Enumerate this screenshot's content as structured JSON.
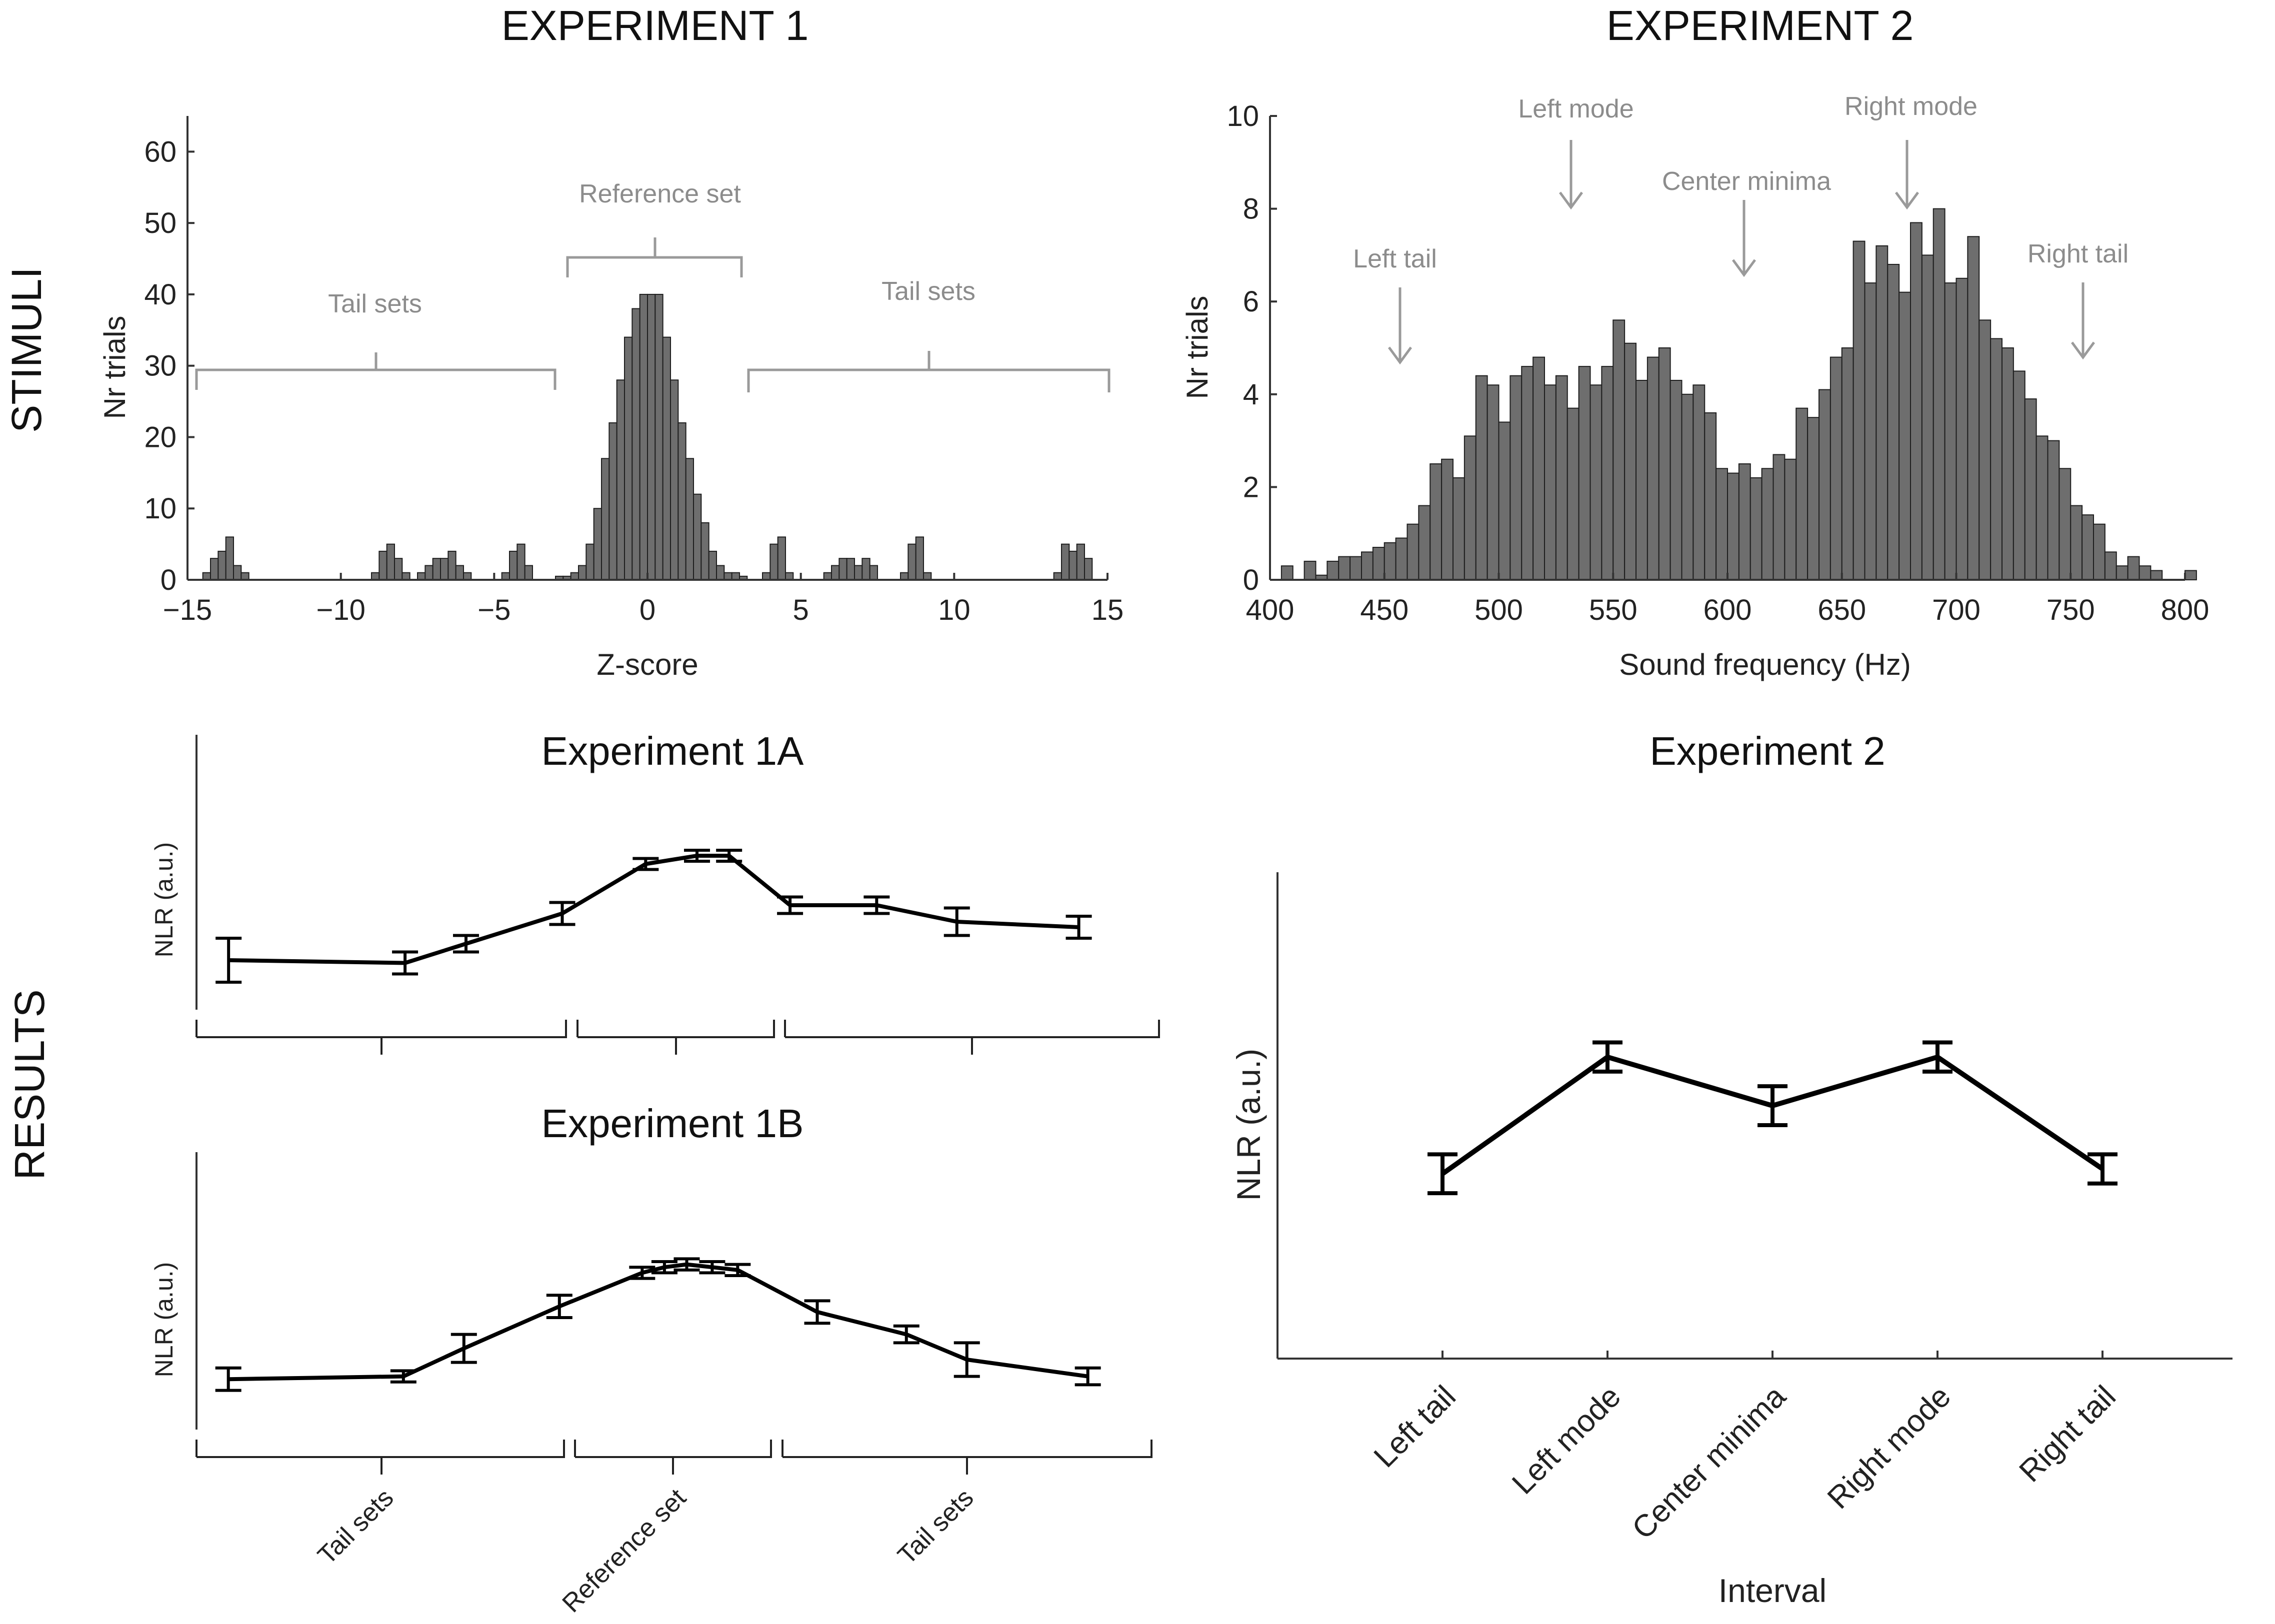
{
  "headings": {
    "col1": "EXPERIMENT 1",
    "col2": "EXPERIMENT 2",
    "row1": "STIMULI",
    "row2": "RESULTS"
  },
  "chart_data": [
    {
      "id": "exp1_stimuli",
      "type": "bar",
      "xlabel": "Z-score",
      "ylabel": "Nr trials",
      "xlim": [
        -15,
        15
      ],
      "ylim": [
        0,
        65
      ],
      "xticks": [
        -15,
        -10,
        -5,
        0,
        5,
        10,
        15
      ],
      "yticks": [
        0,
        10,
        20,
        30,
        40,
        50,
        60
      ],
      "bin_width": 0.25,
      "bins": [
        [
          -14.5,
          1
        ],
        [
          -14.25,
          3
        ],
        [
          -14.0,
          4
        ],
        [
          -13.75,
          6
        ],
        [
          -13.5,
          2
        ],
        [
          -13.25,
          1
        ],
        [
          -9.0,
          1
        ],
        [
          -8.75,
          4
        ],
        [
          -8.5,
          5
        ],
        [
          -8.25,
          3
        ],
        [
          -8.0,
          1
        ],
        [
          -7.5,
          1
        ],
        [
          -7.25,
          2
        ],
        [
          -7.0,
          3
        ],
        [
          -6.75,
          3
        ],
        [
          -6.5,
          4
        ],
        [
          -6.25,
          2
        ],
        [
          -6.0,
          1
        ],
        [
          -4.75,
          1
        ],
        [
          -4.5,
          4
        ],
        [
          -4.25,
          5
        ],
        [
          -4.0,
          2
        ],
        [
          -3.0,
          0.5
        ],
        [
          -2.75,
          0.5
        ],
        [
          -2.5,
          1
        ],
        [
          -2.25,
          2
        ],
        [
          -2.0,
          5
        ],
        [
          -1.75,
          10
        ],
        [
          -1.5,
          17
        ],
        [
          -1.25,
          22
        ],
        [
          -1.0,
          28
        ],
        [
          -0.75,
          34
        ],
        [
          -0.5,
          38
        ],
        [
          -0.25,
          40
        ],
        [
          0.0,
          40
        ],
        [
          0.25,
          40
        ],
        [
          0.5,
          34
        ],
        [
          0.75,
          28
        ],
        [
          1.0,
          22
        ],
        [
          1.25,
          17
        ],
        [
          1.5,
          12
        ],
        [
          1.75,
          8
        ],
        [
          2.0,
          4
        ],
        [
          2.25,
          2
        ],
        [
          2.5,
          1
        ],
        [
          2.75,
          1
        ],
        [
          3.0,
          0.5
        ],
        [
          3.75,
          1
        ],
        [
          4.0,
          5
        ],
        [
          4.25,
          6
        ],
        [
          4.5,
          1
        ],
        [
          5.75,
          1
        ],
        [
          6.0,
          2
        ],
        [
          6.25,
          3
        ],
        [
          6.5,
          3
        ],
        [
          6.75,
          2
        ],
        [
          7.0,
          3
        ],
        [
          7.25,
          2
        ],
        [
          8.25,
          1
        ],
        [
          8.5,
          5
        ],
        [
          8.75,
          6
        ],
        [
          9.0,
          1
        ],
        [
          13.25,
          1
        ],
        [
          13.5,
          5
        ],
        [
          13.75,
          4
        ],
        [
          14.0,
          5
        ],
        [
          14.25,
          3
        ]
      ],
      "annotations": [
        "Tail sets",
        "Reference set",
        "Tail sets"
      ]
    },
    {
      "id": "exp2_stimuli",
      "type": "bar",
      "xlabel": "Sound frequency (Hz)",
      "ylabel": "Nr trials",
      "xlim": [
        400,
        800
      ],
      "ylim": [
        0,
        10
      ],
      "xticks": [
        400,
        450,
        500,
        550,
        600,
        650,
        700,
        750,
        800
      ],
      "yticks": [
        0,
        2,
        4,
        6,
        8,
        10
      ],
      "bin_width": 5,
      "bins": [
        [
          405,
          0.3
        ],
        [
          410,
          0
        ],
        [
          415,
          0.4
        ],
        [
          420,
          0.1
        ],
        [
          425,
          0.4
        ],
        [
          430,
          0.5
        ],
        [
          435,
          0.5
        ],
        [
          440,
          0.6
        ],
        [
          445,
          0.7
        ],
        [
          450,
          0.8
        ],
        [
          455,
          0.9
        ],
        [
          460,
          1.2
        ],
        [
          465,
          1.6
        ],
        [
          470,
          2.5
        ],
        [
          475,
          2.6
        ],
        [
          480,
          2.2
        ],
        [
          485,
          3.1
        ],
        [
          490,
          4.4
        ],
        [
          495,
          4.2
        ],
        [
          500,
          3.4
        ],
        [
          505,
          4.4
        ],
        [
          510,
          4.6
        ],
        [
          515,
          4.8
        ],
        [
          520,
          4.2
        ],
        [
          525,
          4.4
        ],
        [
          530,
          3.7
        ],
        [
          535,
          4.6
        ],
        [
          540,
          4.2
        ],
        [
          545,
          4.6
        ],
        [
          550,
          5.6
        ],
        [
          555,
          5.1
        ],
        [
          560,
          4.3
        ],
        [
          565,
          4.8
        ],
        [
          570,
          5.0
        ],
        [
          575,
          4.3
        ],
        [
          580,
          4.0
        ],
        [
          585,
          4.2
        ],
        [
          590,
          3.6
        ],
        [
          595,
          2.4
        ],
        [
          600,
          2.3
        ],
        [
          605,
          2.5
        ],
        [
          610,
          2.2
        ],
        [
          615,
          2.4
        ],
        [
          620,
          2.7
        ],
        [
          625,
          2.6
        ],
        [
          630,
          3.7
        ],
        [
          635,
          3.5
        ],
        [
          640,
          4.1
        ],
        [
          645,
          4.8
        ],
        [
          650,
          5.0
        ],
        [
          655,
          7.3
        ],
        [
          660,
          6.4
        ],
        [
          665,
          7.2
        ],
        [
          670,
          6.8
        ],
        [
          675,
          6.2
        ],
        [
          680,
          7.7
        ],
        [
          685,
          7.0
        ],
        [
          690,
          8.0
        ],
        [
          695,
          6.4
        ],
        [
          700,
          6.5
        ],
        [
          705,
          7.4
        ],
        [
          710,
          5.6
        ],
        [
          715,
          5.2
        ],
        [
          720,
          5.0
        ],
        [
          725,
          4.5
        ],
        [
          730,
          3.9
        ],
        [
          735,
          3.1
        ],
        [
          740,
          3.0
        ],
        [
          745,
          2.4
        ],
        [
          750,
          1.6
        ],
        [
          755,
          1.4
        ],
        [
          760,
          1.2
        ],
        [
          765,
          0.6
        ],
        [
          770,
          0.3
        ],
        [
          775,
          0.5
        ],
        [
          780,
          0.3
        ],
        [
          785,
          0.2
        ],
        [
          790,
          0
        ],
        [
          795,
          0
        ],
        [
          800,
          0.2
        ]
      ],
      "annotations": [
        "Left tail",
        "Left mode",
        "Center minima",
        "Right mode",
        "Right tail"
      ]
    },
    {
      "id": "exp1a_results",
      "type": "line",
      "title": "Experiment 1A",
      "ylabel": "NLR (a.u.)",
      "x": [
        -14,
        -8.5,
        -6.6,
        -3.6,
        -1.0,
        0.6,
        1.6,
        3.5,
        6.2,
        8.7,
        12.5
      ],
      "y": [
        0.18,
        0.17,
        0.24,
        0.35,
        0.53,
        0.56,
        0.56,
        0.38,
        0.38,
        0.32,
        0.3
      ],
      "err": [
        0.08,
        0.04,
        0.03,
        0.04,
        0.02,
        0.02,
        0.02,
        0.03,
        0.03,
        0.05,
        0.04
      ]
    },
    {
      "id": "exp1b_results",
      "type": "line",
      "title": "Experiment 1B",
      "ylabel": "NLR (a.u.)",
      "x": [
        -14,
        -8.5,
        -6.6,
        -3.6,
        -1.0,
        -0.3,
        0.4,
        1.2,
        2.0,
        4.5,
        7.3,
        9.2,
        13.0
      ],
      "y": [
        0.18,
        0.19,
        0.29,
        0.44,
        0.56,
        0.58,
        0.59,
        0.58,
        0.57,
        0.42,
        0.34,
        0.25,
        0.19
      ],
      "err": [
        0.04,
        0.02,
        0.05,
        0.04,
        0.02,
        0.02,
        0.02,
        0.02,
        0.02,
        0.04,
        0.03,
        0.06,
        0.03
      ],
      "group_labels": [
        "Tail sets",
        "Reference set",
        "Tail sets"
      ]
    },
    {
      "id": "exp2_results",
      "type": "line",
      "title": "Experiment 2",
      "xlabel": "Interval",
      "ylabel": "NLR (a.u.)",
      "categories": [
        "Left tail",
        "Left mode",
        "Center minima",
        "Right mode",
        "Right tail"
      ],
      "y": [
        0.38,
        0.62,
        0.52,
        0.62,
        0.39
      ],
      "err": [
        0.04,
        0.03,
        0.04,
        0.03,
        0.03
      ]
    }
  ]
}
